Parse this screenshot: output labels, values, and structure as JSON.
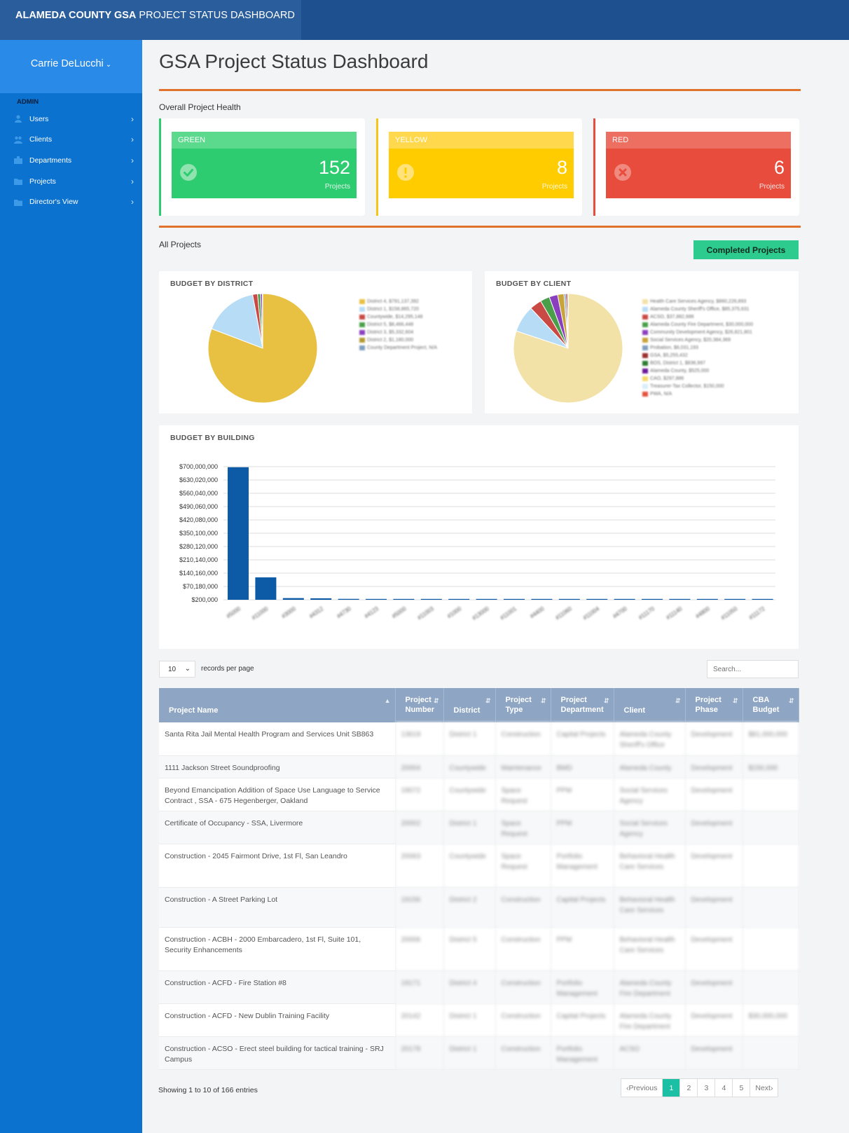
{
  "header": {
    "brand_bold": "ALAMEDA COUNTY GSA",
    "brand_rest": " PROJECT STATUS DASHBOARD"
  },
  "sidebar": {
    "user_name": "Carrie DeLucchi",
    "section_label": "ADMIN",
    "items": [
      {
        "label": "Users",
        "icon": "users-icon"
      },
      {
        "label": "Clients",
        "icon": "clients-icon"
      },
      {
        "label": "Departments",
        "icon": "departments-icon"
      },
      {
        "label": "Projects",
        "icon": "folder-icon"
      },
      {
        "label": "Director's View",
        "icon": "folder-icon"
      }
    ]
  },
  "main": {
    "title": "GSA Project Status Dashboard",
    "health_label": "Overall Project Health",
    "health": [
      {
        "status": "GREEN",
        "count": "152",
        "unit": "Projects",
        "color": "#2ecc71",
        "header_color": "#5bd98c",
        "stripe": "#2ecc71",
        "icon": "check-circle-icon"
      },
      {
        "status": "YELLOW",
        "count": "8",
        "unit": "Projects",
        "color": "#ffcc00",
        "header_color": "#ffd84d",
        "stripe": "#f5c518",
        "icon": "exclamation-circle-icon"
      },
      {
        "status": "RED",
        "count": "6",
        "unit": "Projects",
        "color": "#e74c3c",
        "header_color": "#ec6f62",
        "stripe": "#e74c3c",
        "icon": "x-circle-icon"
      }
    ],
    "all_projects_label": "All Projects",
    "completed_button": "Completed Projects"
  },
  "charts": {
    "district_title": "BUDGET BY DISTRICT",
    "client_title": "BUDGET BY CLIENT",
    "building_title": "BUDGET BY BUILDING"
  },
  "chart_data": [
    {
      "type": "pie",
      "title": "BUDGET BY DISTRICT",
      "slices": [
        {
          "label": "District 4, $791,137,392",
          "value": 791137392,
          "color": "#e8c143"
        },
        {
          "label": "District 1, $158,865,720",
          "value": 158865720,
          "color": "#b7dcf6"
        },
        {
          "label": "Countywide, $14,295,148",
          "value": 14295148,
          "color": "#c94a44"
        },
        {
          "label": "District 5, $8,466,448",
          "value": 8466448,
          "color": "#4aa04a"
        },
        {
          "label": "District 3, $5,332,604",
          "value": 5332604,
          "color": "#8a3fbf"
        },
        {
          "label": "District 2, $1,180,000",
          "value": 1180000,
          "color": "#b39a33"
        },
        {
          "label": "County Department Project, N/A",
          "value": 0,
          "color": "#7f9fbf"
        }
      ]
    },
    {
      "type": "pie",
      "title": "BUDGET BY CLIENT",
      "slices": [
        {
          "label": "Health Care Services Agency, $860,226,893",
          "value": 860226893,
          "color": "#f3e2a8"
        },
        {
          "label": "Alameda County Sheriff's Office, $85,375,631",
          "value": 85375631,
          "color": "#b7dcf6"
        },
        {
          "label": "ACSO, $37,882,686",
          "value": 37882686,
          "color": "#c94a44"
        },
        {
          "label": "Alameda County Fire Department, $30,000,000",
          "value": 30000000,
          "color": "#4aa04a"
        },
        {
          "label": "Community Development Agency, $26,821,801",
          "value": 26821801,
          "color": "#8a3fbf"
        },
        {
          "label": "Social Services Agency, $20,384,369",
          "value": 20384369,
          "color": "#c9a43a"
        },
        {
          "label": "Probation, $6,031,193",
          "value": 6031193,
          "color": "#7f9fbf"
        },
        {
          "label": "GSA, $5,255,432",
          "value": 5255432,
          "color": "#9c3030"
        },
        {
          "label": "BOS, District 1, $836,997",
          "value": 836997,
          "color": "#2e7d32"
        },
        {
          "label": "Alameda County, $525,000",
          "value": 525000,
          "color": "#6a1b9a"
        },
        {
          "label": "CAO, $297,886",
          "value": 297886,
          "color": "#f3da6a"
        },
        {
          "label": "Treasurer-Tax Collector, $150,000",
          "value": 150000,
          "color": "#d8eefa"
        },
        {
          "label": "PWA, N/A",
          "value": 0,
          "color": "#e5533f"
        }
      ]
    },
    {
      "type": "bar",
      "title": "BUDGET BY BUILDING",
      "categories": [
        "#5000",
        "#11000",
        "#3000",
        "#4312",
        "#4730",
        "#4123",
        "#5000",
        "#11003",
        "#1000",
        "#13000",
        "#11001",
        "#4400",
        "#11060",
        "#11004",
        "#4700",
        "#11170",
        "#11140",
        "#4800",
        "#11050",
        "#11172"
      ],
      "values": [
        697000000,
        118000000,
        9000000,
        8000000,
        5000000,
        4000000,
        2000000,
        1500000,
        1000000,
        800000,
        600000,
        500000,
        400000,
        300000,
        250000,
        220000,
        210000,
        205000,
        203000,
        200000
      ],
      "ylim": [
        200000,
        700000000
      ],
      "yticks": [
        "$700,000,000",
        "$630,020,000",
        "$560,040,000",
        "$490,060,000",
        "$420,080,000",
        "$350,100,000",
        "$280,120,000",
        "$210,140,000",
        "$140,160,000",
        "$70,180,000",
        "$200,000"
      ],
      "bar_color": "#0d5aa7",
      "grid": true
    }
  ],
  "table": {
    "length_value": "10",
    "length_label": "records per page",
    "search_placeholder": "Search...",
    "columns": [
      "Project Name",
      "Project Number",
      "District",
      "Project Type",
      "Project Department",
      "Client",
      "Project Phase",
      "CBA Budget"
    ],
    "rows": [
      [
        "Santa Rita Jail Mental Health Program and Services Unit SB863",
        "13619",
        "District 1",
        "Construction",
        "Capital Projects",
        "Alameda County Sheriff's Office",
        "Development",
        "$81,000,000"
      ],
      [
        "1111 Jackson Street Soundproofing",
        "20004",
        "Countywide",
        "Maintenance",
        "BMD",
        "Alameda County",
        "Development",
        "$150,000"
      ],
      [
        "Beyond Emancipation Addition of Space Use Language to Service Contract , SSA - 675 Hegenberger, Oakland",
        "19072",
        "Countywide",
        "Space Request",
        "PPM",
        "Social Services Agency",
        "Development",
        ""
      ],
      [
        "Certificate of Occupancy - SSA, Livermore",
        "20002",
        "District 1",
        "Space Request",
        "PPM",
        "Social Services Agency",
        "Development",
        ""
      ],
      [
        "Construction - 2045 Fairmont Drive, 1st Fl, San Leandro",
        "20063",
        "Countywide",
        "Space Request",
        "Portfolio Management",
        "Behavioral Health Care Services",
        "Development",
        ""
      ],
      [
        "Construction - A Street Parking Lot",
        "19156",
        "District 2",
        "Construction",
        "Capital Projects",
        "Behavioral Health Care Services",
        "Development",
        ""
      ],
      [
        "Construction - ACBH - 2000 Embarcadero, 1st Fl, Suite 101, Security Enhancements",
        "20006",
        "District 5",
        "Construction",
        "PPM",
        "Behavioral Health Care Services",
        "Development",
        ""
      ],
      [
        "Construction - ACFD - Fire Station #8",
        "19171",
        "District 4",
        "Construction",
        "Portfolio Management",
        "Alameda County Fire Department",
        "Development",
        ""
      ],
      [
        "Construction - ACFD - New Dublin Training Facility",
        "20142",
        "District 1",
        "Construction",
        "Capital Projects",
        "Alameda County Fire Department",
        "Development",
        "$30,000,000"
      ],
      [
        "Construction - ACSO - Erect steel building for tactical training - SRJ Campus",
        "20178",
        "District 1",
        "Construction",
        "Portfolio Management",
        "ACSO",
        "Development",
        ""
      ]
    ],
    "info": "Showing 1 to 10 of 166 entries",
    "pagination": [
      "Previous",
      "1",
      "2",
      "3",
      "4",
      "5",
      "Next"
    ],
    "active_page": "1"
  }
}
